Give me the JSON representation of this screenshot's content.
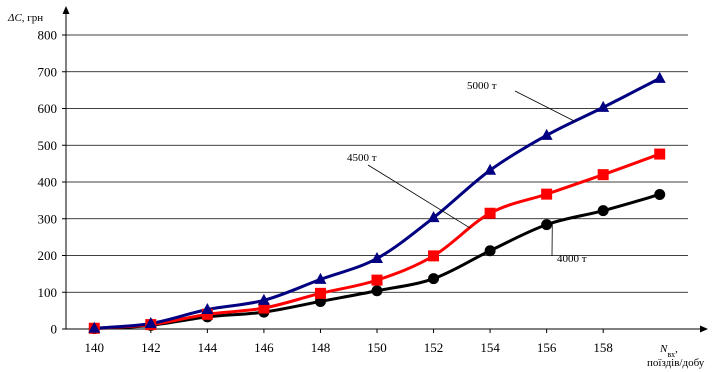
{
  "chart_data": {
    "type": "line",
    "ylabel_main": "ΔC",
    "ylabel_unit": ", грн",
    "xlabel_main": "N",
    "xlabel_sub": "вх",
    "xlabel_suffix": ",",
    "xlabel_line2": "поїздів/добу",
    "x_ticks": [
      "140",
      "142",
      "144",
      "146",
      "148",
      "150",
      "152",
      "154",
      "156",
      "158"
    ],
    "y_ticks": [
      "0",
      "100",
      "200",
      "300",
      "400",
      "500",
      "600",
      "700",
      "800"
    ],
    "xlim": [
      139,
      161
    ],
    "ylim": [
      0,
      800
    ],
    "grid": "horizontal",
    "series": [
      {
        "name": "5000 т",
        "color": "#000080",
        "marker": "triangle",
        "x": [
          140,
          142,
          144,
          146,
          148,
          150,
          152,
          154,
          156,
          158,
          160
        ],
        "y": [
          2,
          15,
          53,
          78,
          135,
          192,
          303,
          432,
          527,
          603,
          682
        ]
      },
      {
        "name": "4500 т",
        "color": "#ff0000",
        "marker": "square",
        "x": [
          140,
          142,
          144,
          146,
          148,
          150,
          152,
          154,
          156,
          158,
          160
        ],
        "y": [
          2,
          12,
          40,
          57,
          97,
          133,
          199,
          315,
          367,
          420,
          476
        ]
      },
      {
        "name": "4000 т",
        "color": "#000000",
        "marker": "circle",
        "x": [
          140,
          142,
          144,
          146,
          148,
          150,
          152,
          154,
          156,
          158,
          160
        ],
        "y": [
          1,
          10,
          33,
          46,
          75,
          104,
          137,
          213,
          284,
          322,
          366
        ]
      }
    ],
    "annotations": [
      {
        "text": "5000 т",
        "series": 0,
        "at_x": 157
      },
      {
        "text": "4500 т",
        "series": 1,
        "at_x": 153.3
      },
      {
        "text": "4000 т",
        "series": 2,
        "at_x": 156.2
      }
    ]
  }
}
